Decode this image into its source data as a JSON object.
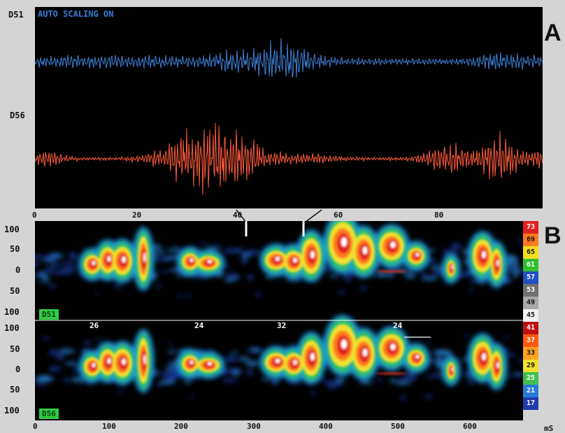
{
  "panel_letters": {
    "a": "A",
    "b": "B"
  },
  "waveform": {
    "scaling_text": "AUTO SCALING ON",
    "channel_top": "D51",
    "channel_bottom": "D56",
    "colors": {
      "top": "#3d7fd6",
      "bottom": "#ff5a3a"
    },
    "x_ticks": [
      "0",
      "20",
      "40",
      "60",
      "80"
    ]
  },
  "spectrogram": {
    "y_ticks_top": [
      "100",
      "50",
      "0",
      "50",
      "100"
    ],
    "y_ticks_bottom": [
      "100",
      "50",
      "0",
      "50",
      "100"
    ],
    "x_ticks": [
      "0",
      "100",
      "200",
      "300",
      "400",
      "500",
      "600"
    ],
    "x_unit": "mS",
    "channel_top": "D51",
    "channel_bottom": "D56",
    "segment_counts": [
      "26",
      "24",
      "32",
      "24"
    ],
    "colorbar_top": [
      {
        "label": "73",
        "color": "#e02020"
      },
      {
        "label": "69",
        "color": "#ff7a1a"
      },
      {
        "label": "65",
        "color": "#f2e020"
      },
      {
        "label": "61",
        "color": "#30c030"
      },
      {
        "label": "57",
        "color": "#2050c0"
      },
      {
        "label": "53",
        "color": "#707070"
      },
      {
        "label": "49",
        "color": "#a8a8a8"
      },
      {
        "label": "45",
        "color": "#f0f0f0"
      }
    ],
    "colorbar_bottom": [
      {
        "label": "41",
        "color": "#c01010"
      },
      {
        "label": "37",
        "color": "#ff5a10"
      },
      {
        "label": "33",
        "color": "#ffa020"
      },
      {
        "label": "29",
        "color": "#f0e030"
      },
      {
        "label": "25",
        "color": "#40c050"
      },
      {
        "label": "21",
        "color": "#2a7ad8"
      },
      {
        "label": "17",
        "color": "#203aa8"
      }
    ]
  }
}
